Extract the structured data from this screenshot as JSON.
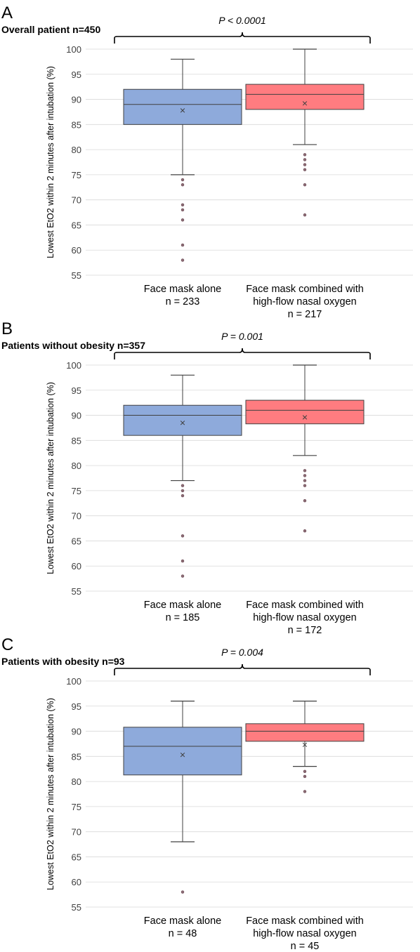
{
  "chart_data": [
    {
      "type": "box",
      "panel_letter": "A",
      "title": "Overall patient n=450",
      "p_value": "P < 0.0001",
      "ylabel": "Lowest EtO2 within 2 minutes after intubation (%)",
      "ylim": [
        55,
        100
      ],
      "yticks": [
        55,
        60,
        65,
        70,
        75,
        80,
        85,
        90,
        95,
        100
      ],
      "grid": true,
      "groups": [
        {
          "label": "Face mask alone",
          "n": "n = 233",
          "color": "#8eaadb",
          "whisker_low": 75,
          "q1": 85,
          "median": 89,
          "q3": 92,
          "whisker_high": 98,
          "mean": 87.8,
          "outliers": [
            74,
            73,
            69,
            68,
            66,
            61,
            58
          ]
        },
        {
          "label": "Face mask combined with high-flow nasal oxygen",
          "label_lines": [
            "Face mask combined with",
            "high-flow nasal oxygen"
          ],
          "n": "n = 217",
          "color": "#ff7c80",
          "whisker_low": 81,
          "q1": 88,
          "median": 91,
          "q3": 93,
          "whisker_high": 100,
          "mean": 89.2,
          "outliers": [
            79,
            78,
            77,
            76,
            73,
            67
          ]
        }
      ]
    },
    {
      "type": "box",
      "panel_letter": "B",
      "title": "Patients without obesity n=357",
      "p_value": "P = 0.001",
      "ylabel": "Lowest EtO2 within 2 minutes after intubation (%)",
      "ylim": [
        55,
        100
      ],
      "yticks": [
        55,
        60,
        65,
        70,
        75,
        80,
        85,
        90,
        95,
        100
      ],
      "grid": true,
      "groups": [
        {
          "label": "Face mask alone",
          "n": "n = 185",
          "color": "#8eaadb",
          "whisker_low": 77,
          "q1": 86,
          "median": 90,
          "q3": 92,
          "whisker_high": 98,
          "mean": 88.5,
          "outliers": [
            76,
            75,
            74,
            66,
            61,
            58
          ]
        },
        {
          "label": "Face mask combined with high-flow nasal oxygen",
          "label_lines": [
            "Face mask combined with",
            "high-flow nasal oxygen"
          ],
          "n": "n = 172",
          "color": "#ff7c80",
          "whisker_low": 82,
          "q1": 88.3,
          "median": 91,
          "q3": 93,
          "whisker_high": 100,
          "mean": 89.6,
          "outliers": [
            79,
            78,
            77,
            76,
            73,
            67
          ]
        }
      ]
    },
    {
      "type": "box",
      "panel_letter": "C",
      "title": "Patients with obesity n=93",
      "p_value": "P = 0.004",
      "ylabel": "Lowest EtO2 within 2 minutes after intubation (%)",
      "ylim": [
        55,
        100
      ],
      "yticks": [
        55,
        60,
        65,
        70,
        75,
        80,
        85,
        90,
        95,
        100
      ],
      "grid": true,
      "groups": [
        {
          "label": "Face mask alone",
          "n": "n = 48",
          "color": "#8eaadb",
          "whisker_low": 68,
          "q1": 81.3,
          "median": 87,
          "q3": 90.8,
          "whisker_high": 96,
          "mean": 85.3,
          "outliers": [
            58
          ]
        },
        {
          "label": "Face mask combined with high-flow nasal oxygen",
          "label_lines": [
            "Face mask combined with",
            "high-flow nasal oxygen"
          ],
          "n": "n = 45",
          "color": "#ff7c80",
          "whisker_low": 83,
          "q1": 88,
          "median": 90,
          "q3": 91.5,
          "whisker_high": 96,
          "mean": 87.3,
          "outliers": [
            82,
            81,
            78
          ]
        }
      ]
    }
  ]
}
